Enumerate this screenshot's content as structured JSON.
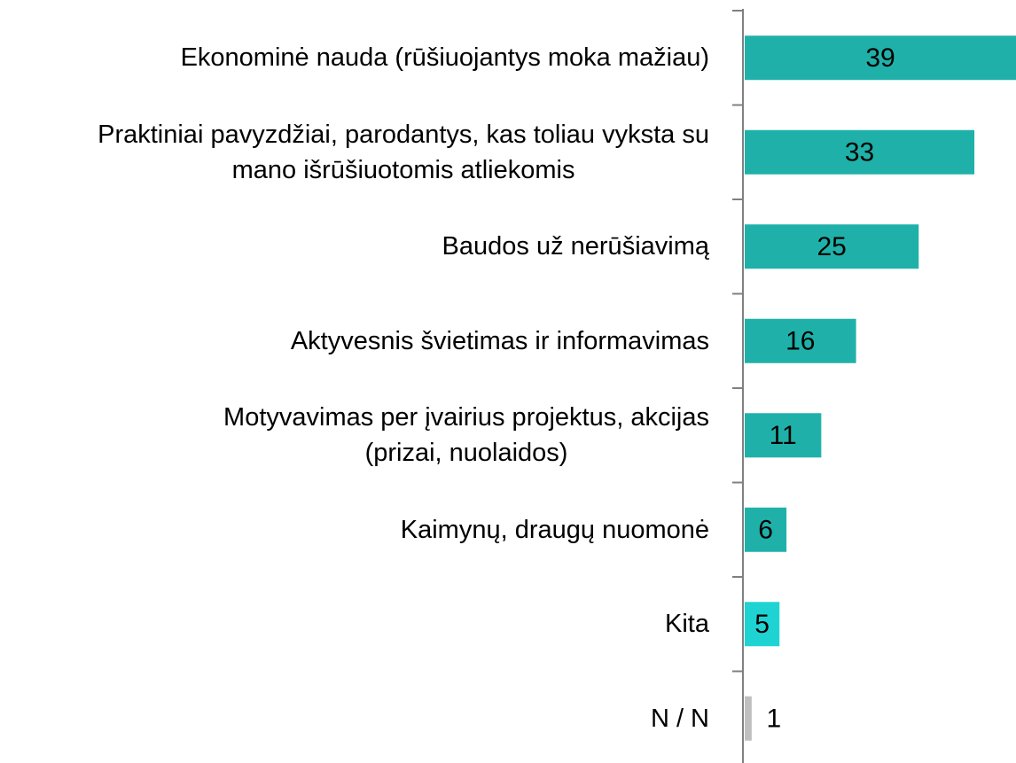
{
  "chart_data": {
    "type": "barh",
    "categories": [
      "Ekonominė nauda (rūšiuojantys moka mažiau)",
      "Praktiniai pavyzdžiai, parodantys, kas toliau vyksta su\nmano išrūšiuotomis atliekomis",
      "Baudos už nerūšiavimą",
      "Aktyvesnis švietimas ir informavimas",
      "Motyvavimas per įvairius projektus, akcijas\n(prizai, nuolaidos)",
      "Kaimynų, draugų nuomonė",
      "Kita",
      "N / N"
    ],
    "values": [
      39,
      33,
      25,
      16,
      11,
      6,
      5,
      1
    ],
    "colors": [
      "#1fb1a9",
      "#1fb1a9",
      "#1fb1a9",
      "#1fb1a9",
      "#1fb1a9",
      "#1fb1a9",
      "#1fd3d3",
      "#bfbfbf"
    ]
  }
}
